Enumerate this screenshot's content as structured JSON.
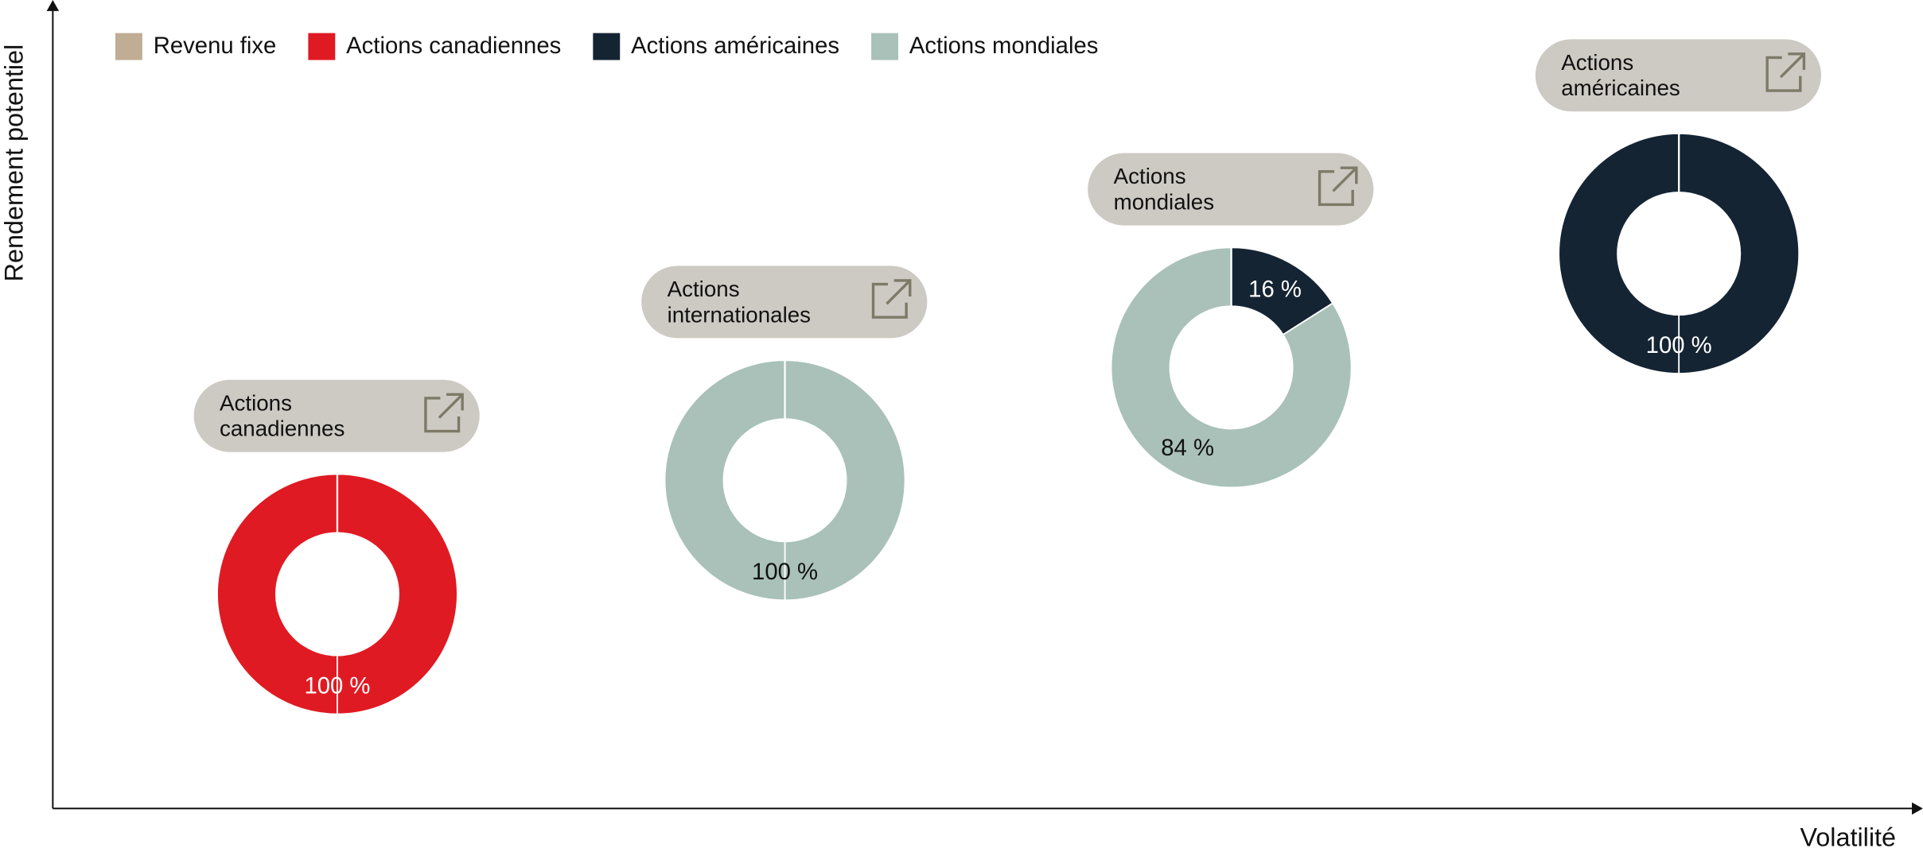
{
  "chart_data": {
    "type": "donut",
    "xlabel": "Volatilité",
    "ylabel": "Rendement potentiel",
    "categories": [
      "Actions canadiennes",
      "Actions internationales",
      "Actions mondiales",
      "Actions américaines"
    ],
    "series": [
      {
        "name": "Revenu fixe",
        "color": "#bfad94",
        "values": [
          0,
          0,
          0,
          0
        ],
        "value_labels": [
          null,
          null,
          null,
          null
        ]
      },
      {
        "name": "Actions canadiennes",
        "color": "#e01a22",
        "values": [
          100,
          0,
          0,
          0
        ],
        "value_labels": [
          "100 %",
          null,
          null,
          null
        ]
      },
      {
        "name": "Actions américaines",
        "color": "#152433",
        "values": [
          0,
          0,
          16,
          100
        ],
        "value_labels": [
          null,
          null,
          "16 %",
          "100 %"
        ]
      },
      {
        "name": "Actions mondiales",
        "color": "#a9c1b8",
        "values": [
          0,
          100,
          84,
          0
        ],
        "value_labels": [
          null,
          "100 %",
          "84 %",
          null
        ]
      }
    ]
  }
}
